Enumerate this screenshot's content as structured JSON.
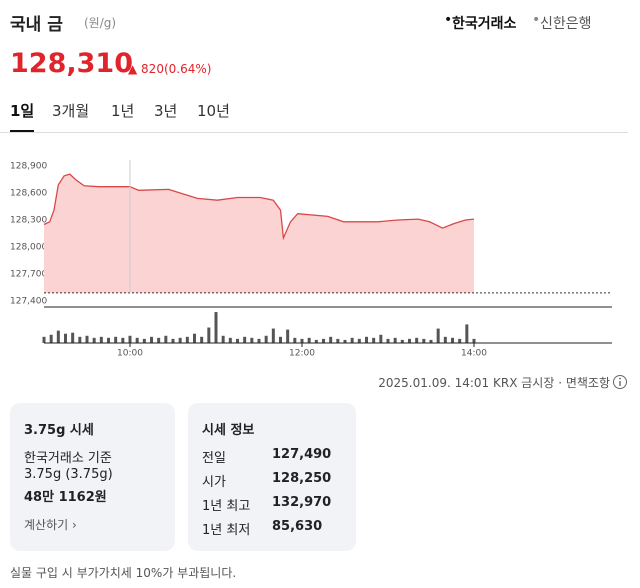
{
  "header": {
    "title": "국내 금",
    "unit": "(원/g)",
    "sources": [
      "한국거래소",
      "신한은행"
    ],
    "selected_source": 0
  },
  "price": {
    "value": "128,310",
    "change": "820",
    "change_pct": "(0.64%)"
  },
  "tabs": {
    "items": [
      "1일",
      "3개월",
      "1년",
      "3년",
      "10년"
    ],
    "selected": 0
  },
  "chart_data": {
    "type": "area",
    "color": "#d94848",
    "fill": "#fcd3d3",
    "x": [
      "09:00",
      "09:04",
      "09:07",
      "09:10",
      "09:14",
      "09:18",
      "09:22",
      "09:28",
      "09:38",
      "10:00",
      "10:06",
      "10:27",
      "10:33",
      "10:47",
      "11:01",
      "11:15",
      "11:31",
      "11:40",
      "11:45",
      "11:47",
      "11:52",
      "11:57",
      "12:18",
      "12:29",
      "12:53",
      "13:07",
      "13:21",
      "13:29",
      "13:38",
      "13:46",
      "13:54",
      "14:00"
    ],
    "values": [
      128250,
      128280,
      128410,
      128690,
      128790,
      128810,
      128750,
      128680,
      128670,
      128670,
      128630,
      128640,
      128610,
      128540,
      128520,
      128550,
      128550,
      128520,
      128410,
      128100,
      128280,
      128370,
      128340,
      128280,
      128280,
      128300,
      128310,
      128280,
      128210,
      128260,
      128300,
      128310
    ],
    "xlim": [
      "09:00",
      "15:30"
    ],
    "xticks": [
      "10:00",
      "12:00",
      "14:00"
    ],
    "ylim": [
      127400,
      129100
    ],
    "yticks": [
      {
        "value": 127400,
        "label": "127,400"
      },
      {
        "value": 127700,
        "label": "127,700"
      },
      {
        "value": 128000,
        "label": "128,000"
      },
      {
        "value": 128300,
        "label": "128,300"
      },
      {
        "value": 128600,
        "label": "128,600"
      },
      {
        "value": 128900,
        "label": "128,900"
      }
    ],
    "reference_line": 127490,
    "volume": {
      "color": "#555555",
      "ylim": [
        0,
        32
      ],
      "x": [
        "09:00",
        "09:05",
        "09:10",
        "09:15",
        "09:20",
        "09:25",
        "09:30",
        "09:35",
        "09:40",
        "09:45",
        "09:50",
        "09:55",
        "10:00",
        "10:05",
        "10:10",
        "10:15",
        "10:20",
        "10:25",
        "10:30",
        "10:35",
        "10:40",
        "10:45",
        "10:50",
        "10:55",
        "11:00",
        "11:05",
        "11:10",
        "11:15",
        "11:20",
        "11:25",
        "11:30",
        "11:35",
        "11:40",
        "11:45",
        "11:50",
        "11:55",
        "12:00",
        "12:05",
        "12:10",
        "12:15",
        "12:20",
        "12:25",
        "12:30",
        "12:35",
        "12:40",
        "12:45",
        "12:50",
        "12:55",
        "13:00",
        "13:05",
        "13:10",
        "13:15",
        "13:20",
        "13:25",
        "13:30",
        "13:35",
        "13:40",
        "13:45",
        "13:50",
        "13:55",
        "14:00"
      ],
      "values": [
        6,
        8,
        12,
        9,
        10,
        6,
        7,
        5,
        6,
        5,
        6,
        5,
        7,
        5,
        4,
        6,
        5,
        7,
        4,
        5,
        6,
        9,
        6,
        15,
        30,
        7,
        5,
        4,
        6,
        5,
        4,
        7,
        14,
        6,
        13,
        5,
        4,
        5,
        3,
        4,
        6,
        4,
        3,
        5,
        4,
        6,
        5,
        8,
        4,
        5,
        3,
        4,
        5,
        4,
        3,
        14,
        6,
        5,
        4,
        18,
        4
      ]
    }
  },
  "footer": {
    "timestamp": "2025.01.09. 14:01 KRX 금시장",
    "disclaimer": "면책조항"
  },
  "card_gold": {
    "title": "3.75g 시세",
    "basis": "한국거래소 기준",
    "weight": "3.75g (3.75g)",
    "price": "48만 1162원",
    "link": "계산하기"
  },
  "card_info": {
    "title": "시세 정보",
    "rows": [
      [
        "전일",
        "127,490"
      ],
      [
        "시가",
        "128,250"
      ],
      [
        "1년 최고",
        "132,970"
      ],
      [
        "1년 최저",
        "85,630"
      ]
    ]
  },
  "note": "실물 구입 시 부가가치세 10%가 부과됩니다."
}
